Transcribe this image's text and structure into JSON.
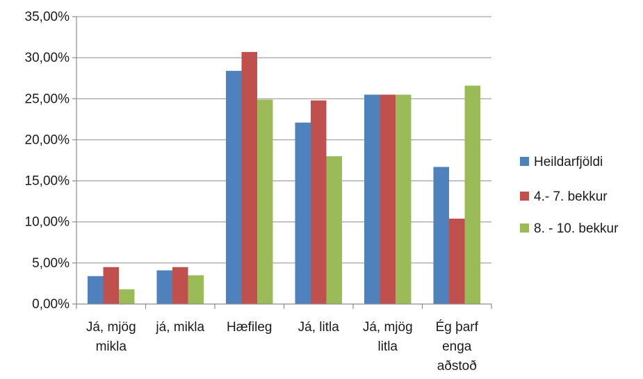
{
  "chart_data": {
    "type": "bar",
    "title": "",
    "xlabel": "",
    "ylabel": "",
    "ylim": [
      0,
      0.35
    ],
    "y_ticks": [
      {
        "value": 0.0,
        "label": "0,00%"
      },
      {
        "value": 0.05,
        "label": "5,00%"
      },
      {
        "value": 0.1,
        "label": "10,00%"
      },
      {
        "value": 0.15,
        "label": "15,00%"
      },
      {
        "value": 0.2,
        "label": "20,00%"
      },
      {
        "value": 0.25,
        "label": "25,00%"
      },
      {
        "value": 0.3,
        "label": "30,00%"
      },
      {
        "value": 0.35,
        "label": "35,00%"
      }
    ],
    "grid": true,
    "legend_position": "right",
    "categories": [
      [
        "Já, mjög",
        "mikla"
      ],
      [
        "já, mikla"
      ],
      [
        "Hæfileg"
      ],
      [
        "Já, litla"
      ],
      [
        "Já, mjög",
        "litla"
      ],
      [
        "Ég þarf",
        "enga",
        "aðstoð"
      ]
    ],
    "series": [
      {
        "name": "Heildarfjöldi",
        "color": "#4f81bd",
        "values": [
          0.034,
          0.041,
          0.284,
          0.221,
          0.255,
          0.167
        ]
      },
      {
        "name": "4.- 7. bekkur",
        "color": "#c0504d",
        "values": [
          0.045,
          0.045,
          0.307,
          0.248,
          0.255,
          0.104
        ]
      },
      {
        "name": "8. - 10. bekkur",
        "color": "#9bbb59",
        "values": [
          0.018,
          0.035,
          0.249,
          0.18,
          0.255,
          0.266
        ]
      }
    ]
  }
}
